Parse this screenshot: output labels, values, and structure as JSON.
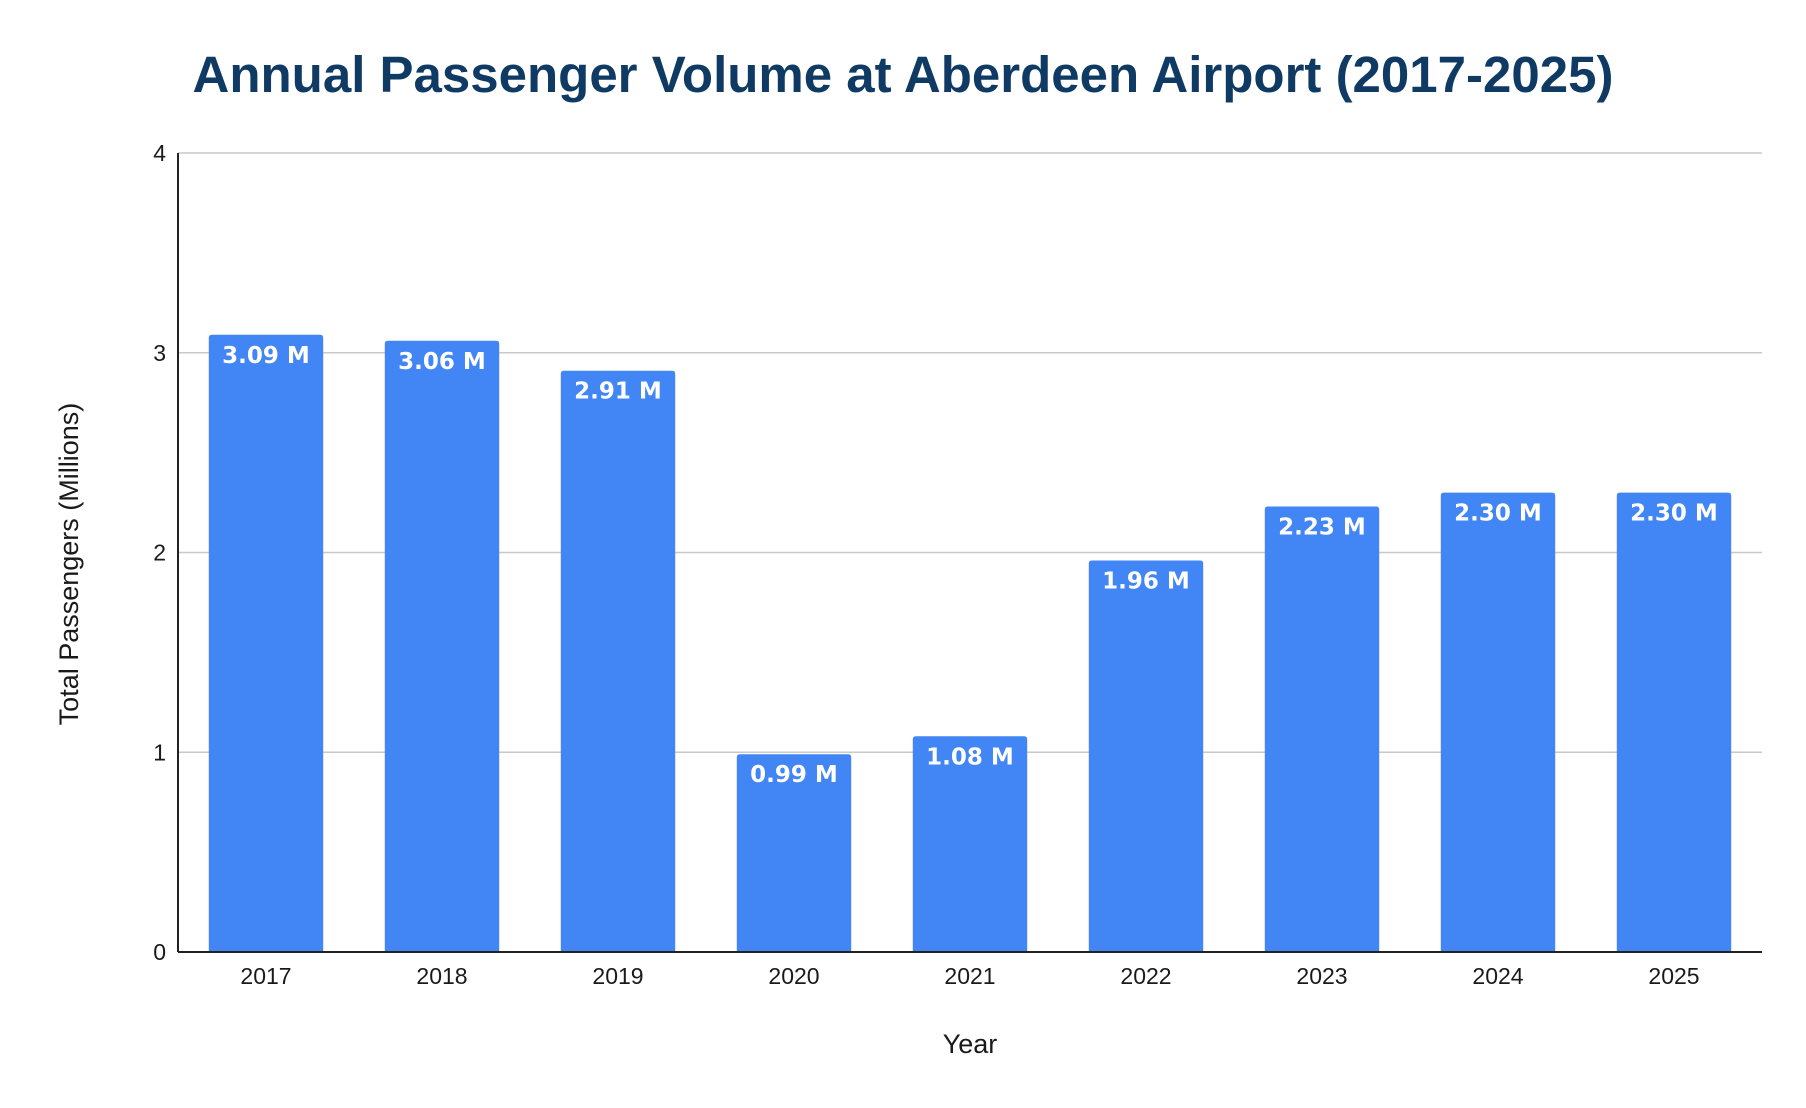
{
  "chart_data": {
    "type": "bar",
    "title": "Annual Passenger Volume at Aberdeen Airport (2017-2025)",
    "xlabel": "Year",
    "ylabel": "Total Passengers (Millions)",
    "categories": [
      "2017",
      "2018",
      "2019",
      "2020",
      "2021",
      "2022",
      "2023",
      "2024",
      "2025"
    ],
    "values": [
      3.09,
      3.06,
      2.91,
      0.99,
      1.08,
      1.96,
      2.23,
      2.3,
      2.3
    ],
    "data_labels": [
      "3.09 M",
      "3.06 M",
      "2.91 M",
      "0.99 M",
      "1.08 M",
      "1.96 M",
      "2.23 M",
      "2.30 M",
      "2.30 M"
    ],
    "ylim": [
      0,
      4
    ],
    "yticks": [
      "0",
      "1",
      "2",
      "3",
      "4"
    ],
    "grid": true,
    "legend": "none",
    "colors": {
      "bar": "#4285f4",
      "title": "#0f3a63"
    }
  }
}
